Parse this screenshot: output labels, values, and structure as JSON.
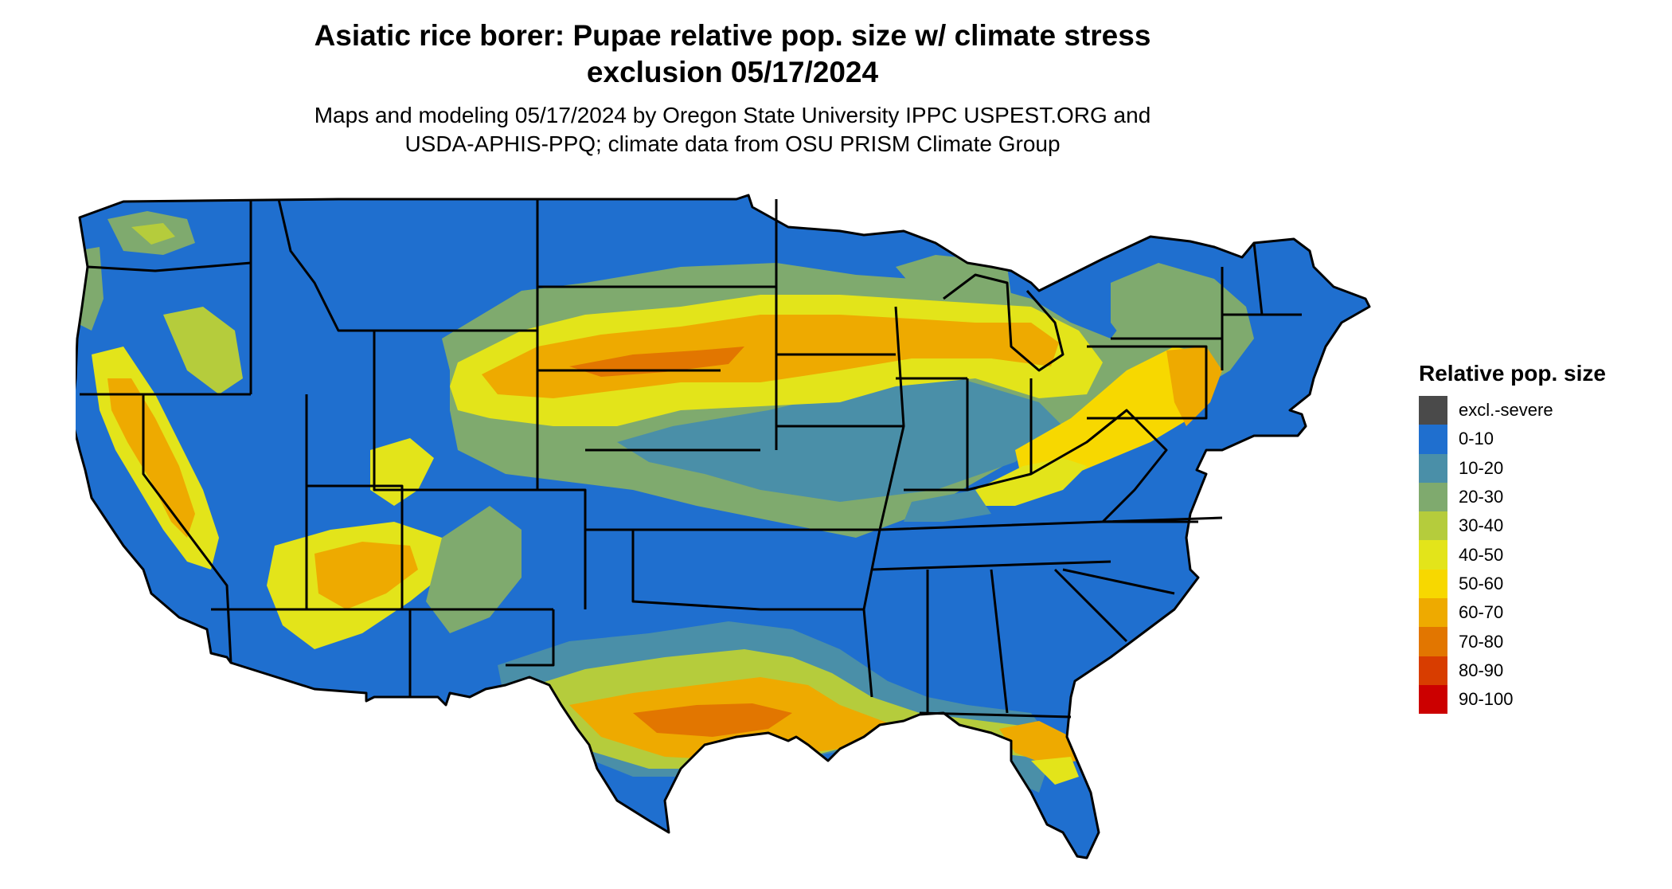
{
  "title": {
    "line1": "Asiatic rice borer: Pupae relative pop. size w/ climate stress",
    "line2": "exclusion 05/17/2024"
  },
  "subtitle": {
    "line1": "Maps and modeling 05/17/2024 by Oregon State University IPPC USPEST.ORG and",
    "line2": "USDA-APHIS-PPQ; climate data from OSU PRISM Climate Group"
  },
  "legend": {
    "title": "Relative pop. size",
    "items": [
      {
        "label": "excl.-severe",
        "color": "#4a4a4a"
      },
      {
        "label": "0-10",
        "color": "#1f6fcf"
      },
      {
        "label": "10-20",
        "color": "#4a8fa8"
      },
      {
        "label": "20-30",
        "color": "#7faa6e"
      },
      {
        "label": "30-40",
        "color": "#b5cc3c"
      },
      {
        "label": "40-50",
        "color": "#e3e41a"
      },
      {
        "label": "50-60",
        "color": "#f7d800"
      },
      {
        "label": "60-70",
        "color": "#eeaa00"
      },
      {
        "label": "70-80",
        "color": "#e27600"
      },
      {
        "label": "80-90",
        "color": "#d83d00"
      },
      {
        "label": "90-100",
        "color": "#cc0000"
      }
    ]
  },
  "map": {
    "region": "conterminous-us",
    "base_color": "#1f6fcf",
    "border_color": "#000000"
  }
}
